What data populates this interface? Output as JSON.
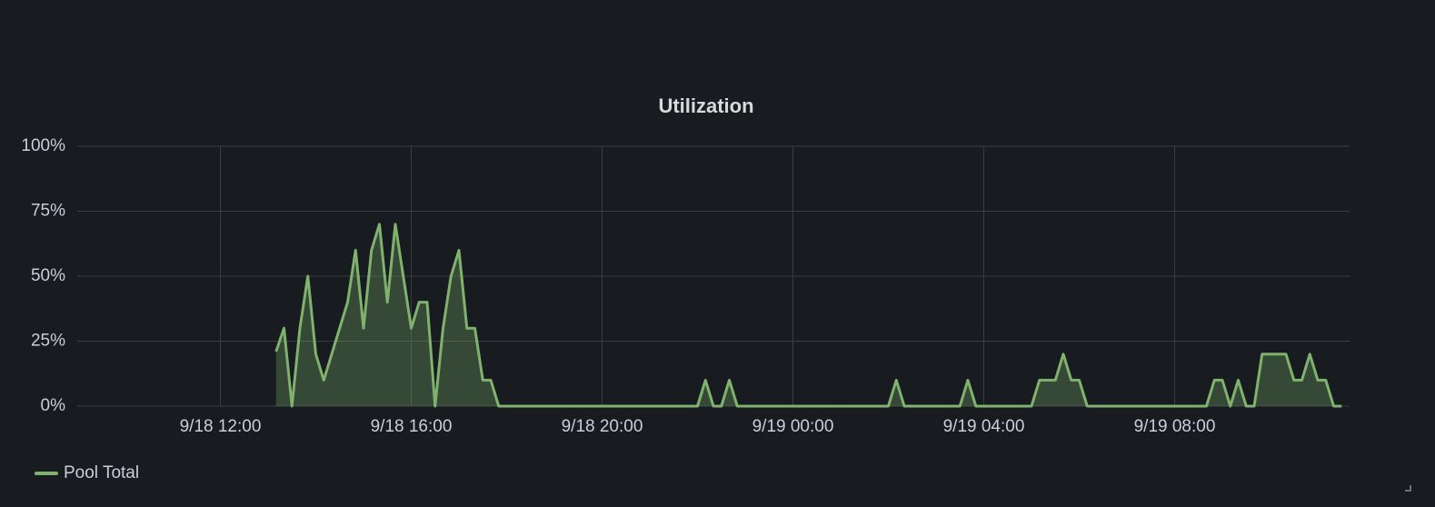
{
  "chart_data": {
    "type": "area",
    "title": "Utilization",
    "x": [
      "9/18 13:10",
      "9/18 13:20",
      "9/18 13:30",
      "9/18 13:40",
      "9/18 13:50",
      "9/18 14:00",
      "9/18 14:10",
      "9/18 14:20",
      "9/18 14:30",
      "9/18 14:40",
      "9/18 14:50",
      "9/18 15:00",
      "9/18 15:10",
      "9/18 15:20",
      "9/18 15:30",
      "9/18 15:40",
      "9/18 15:50",
      "9/18 16:00",
      "9/18 16:10",
      "9/18 16:20",
      "9/18 16:30",
      "9/18 16:40",
      "9/18 16:50",
      "9/18 17:00",
      "9/18 17:10",
      "9/18 17:20",
      "9/18 17:30",
      "9/18 17:40",
      "9/18 17:50",
      "9/18 22:00",
      "9/18 22:10",
      "9/18 22:20",
      "9/18 22:30",
      "9/18 22:40",
      "9/18 22:50",
      "9/19 02:00",
      "9/19 02:10",
      "9/19 02:20",
      "9/19 03:30",
      "9/19 03:40",
      "9/19 03:50",
      "9/19 05:00",
      "9/19 05:10",
      "9/19 05:20",
      "9/19 05:30",
      "9/19 05:40",
      "9/19 05:50",
      "9/19 06:00",
      "9/19 06:10",
      "9/19 08:40",
      "9/19 08:50",
      "9/19 09:00",
      "9/19 09:10",
      "9/19 09:20",
      "9/19 09:30",
      "9/19 09:40",
      "9/19 09:50",
      "9/19 10:00",
      "9/19 10:10",
      "9/19 10:20",
      "9/19 10:30",
      "9/19 10:40",
      "9/19 10:50",
      "9/19 11:00",
      "9/19 11:10",
      "9/19 11:20",
      "9/19 11:30"
    ],
    "series": [
      {
        "name": "Pool Total",
        "color": "#7eb26d",
        "values": [
          21,
          30,
          0,
          30,
          50,
          20,
          10,
          20,
          30,
          40,
          60,
          30,
          60,
          70,
          40,
          70,
          50,
          30,
          40,
          40,
          0,
          30,
          50,
          60,
          30,
          30,
          10,
          10,
          0,
          0,
          10,
          0,
          0,
          10,
          0,
          0,
          10,
          0,
          0,
          10,
          0,
          0,
          10,
          10,
          10,
          20,
          10,
          10,
          0,
          0,
          10,
          10,
          0,
          10,
          0,
          0,
          20,
          20,
          20,
          20,
          10,
          10,
          20,
          10,
          10,
          0,
          0
        ]
      }
    ],
    "xlim": [
      "9/18 09:00",
      "9/19 11:40"
    ],
    "xticks": [
      "9/18 12:00",
      "9/18 16:00",
      "9/18 20:00",
      "9/19 00:00",
      "9/19 04:00",
      "9/19 08:00"
    ],
    "ylim": [
      0,
      100
    ],
    "yticks": [
      {
        "value": 0,
        "label": "0%"
      },
      {
        "value": 25,
        "label": "25%"
      },
      {
        "value": 50,
        "label": "50%"
      },
      {
        "value": 75,
        "label": "75%"
      },
      {
        "value": 100,
        "label": "100%"
      }
    ],
    "grid": true,
    "legend": "bottom-left"
  }
}
